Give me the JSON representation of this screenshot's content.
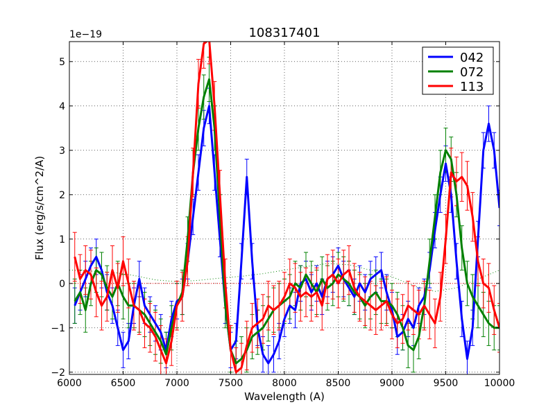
{
  "chart_data": {
    "type": "line",
    "title": "108317401",
    "xlabel": "Wavelength (A)",
    "ylabel": "Flux (erg/s/cm^2/A)",
    "offset_text": "1e−19",
    "xlim": [
      6000,
      10000
    ],
    "ylim": [
      -2.05,
      5.45
    ],
    "xticks": [
      6000,
      6500,
      7000,
      7500,
      8000,
      8500,
      9000,
      9500,
      10000
    ],
    "xtick_labels": [
      "6000",
      "6500",
      "7000",
      "7500",
      "8000",
      "8500",
      "9000",
      "9500",
      "10000"
    ],
    "yticks": [
      -2,
      -1,
      0,
      1,
      2,
      3,
      4,
      5
    ],
    "ytick_labels": [
      "−2",
      "−1",
      "0",
      "1",
      "2",
      "3",
      "4",
      "5"
    ],
    "grid": true,
    "legend_position": "top-right",
    "reference_lines": [
      {
        "name": "zero-line",
        "y": 0,
        "color": "#ff0000",
        "style": "dotted"
      }
    ],
    "noise_curve": {
      "name": "noise-level",
      "color": "#008000",
      "style": "dotted",
      "x": [
        6000,
        6200,
        6400,
        6600,
        6800,
        7000,
        7200,
        7400,
        7600,
        7800,
        8000,
        8200,
        8400,
        8600,
        8800,
        9000,
        9200,
        9400,
        9600,
        9800,
        10000
      ],
      "y": [
        0.3,
        0.28,
        0.25,
        0.18,
        0.08,
        0.04,
        0.07,
        0.12,
        0.16,
        0.22,
        0.3,
        0.38,
        0.45,
        0.42,
        0.3,
        0.15,
        -0.05,
        -0.18,
        -0.1,
        0.1,
        0.3
      ]
    },
    "series": [
      {
        "name": "042",
        "color": "#0000ff",
        "x": [
          6050,
          6100,
          6150,
          6200,
          6250,
          6300,
          6350,
          6400,
          6450,
          6500,
          6550,
          6600,
          6650,
          6700,
          6750,
          6800,
          6850,
          6900,
          6950,
          7000,
          7050,
          7100,
          7150,
          7200,
          7250,
          7300,
          7350,
          7400,
          7450,
          7500,
          7550,
          7600,
          7650,
          7700,
          7750,
          7800,
          7850,
          7900,
          7950,
          8000,
          8050,
          8100,
          8150,
          8200,
          8250,
          8300,
          8350,
          8400,
          8450,
          8500,
          8550,
          8600,
          8650,
          8700,
          8750,
          8800,
          8850,
          8900,
          8950,
          9000,
          9050,
          9100,
          9150,
          9200,
          9250,
          9300,
          9350,
          9400,
          9450,
          9500,
          9550,
          9600,
          9650,
          9700,
          9750,
          9800,
          9850,
          9900,
          9950,
          10000
        ],
        "y": [
          -0.5,
          -0.2,
          0.1,
          0.4,
          0.6,
          0.3,
          -0.2,
          -0.5,
          -1.0,
          -1.5,
          -1.3,
          -0.5,
          0.1,
          -0.5,
          -0.7,
          -0.9,
          -1.1,
          -1.5,
          -0.8,
          -0.4,
          -0.3,
          0.5,
          1.5,
          2.5,
          3.5,
          4.0,
          2.5,
          1.0,
          -0.5,
          -1.5,
          -1.3,
          0.5,
          2.4,
          0.5,
          -1.0,
          -1.6,
          -1.8,
          -1.6,
          -1.3,
          -0.8,
          -0.5,
          -0.6,
          0.0,
          0.1,
          -0.2,
          0.0,
          -0.3,
          0.1,
          0.2,
          0.4,
          0.1,
          -0.1,
          -0.3,
          0.0,
          -0.2,
          0.1,
          0.2,
          0.3,
          -0.2,
          -0.6,
          -1.2,
          -1.1,
          -0.8,
          -1.0,
          -0.5,
          -0.3,
          0.3,
          1.2,
          2.0,
          2.7,
          2.0,
          0.5,
          -0.8,
          -1.7,
          -1.0,
          1.0,
          3.0,
          3.6,
          3.0,
          1.7
        ],
        "err": 0.4
      },
      {
        "name": "072",
        "color": "#008000",
        "x": [
          6050,
          6100,
          6150,
          6200,
          6250,
          6300,
          6350,
          6400,
          6450,
          6500,
          6550,
          6600,
          6650,
          6700,
          6750,
          6800,
          6850,
          6900,
          6950,
          7000,
          7050,
          7100,
          7150,
          7200,
          7250,
          7300,
          7350,
          7400,
          7450,
          7500,
          7550,
          7600,
          7650,
          7700,
          7750,
          7800,
          7850,
          7900,
          7950,
          8000,
          8050,
          8100,
          8150,
          8200,
          8250,
          8300,
          8350,
          8400,
          8450,
          8500,
          8550,
          8600,
          8650,
          8700,
          8750,
          8800,
          8850,
          8900,
          8950,
          9000,
          9050,
          9100,
          9150,
          9200,
          9250,
          9300,
          9350,
          9400,
          9450,
          9500,
          9550,
          9600,
          9650,
          9700,
          9750,
          9800,
          9850,
          9900,
          9950,
          10000
        ],
        "y": [
          -0.4,
          -0.2,
          -0.6,
          0.0,
          0.3,
          0.2,
          -0.1,
          -0.3,
          0.0,
          -0.3,
          -0.5,
          -0.5,
          -0.6,
          -0.7,
          -0.9,
          -1.1,
          -1.3,
          -1.6,
          -1.0,
          -0.5,
          -0.2,
          1.0,
          2.5,
          3.5,
          4.2,
          4.6,
          3.5,
          1.5,
          -0.5,
          -1.5,
          -1.8,
          -1.7,
          -1.5,
          -1.2,
          -1.1,
          -1.0,
          -0.8,
          -0.6,
          -0.5,
          -0.4,
          -0.3,
          0.0,
          -0.1,
          0.2,
          0.0,
          -0.2,
          0.1,
          -0.1,
          0.0,
          0.2,
          0.1,
          0.0,
          -0.2,
          -0.3,
          -0.5,
          -0.3,
          -0.2,
          -0.4,
          -0.4,
          -0.5,
          -0.7,
          -1.0,
          -1.4,
          -1.5,
          -1.2,
          -0.5,
          0.5,
          1.5,
          2.5,
          3.0,
          2.8,
          2.0,
          0.8,
          0.0,
          -0.3,
          -0.5,
          -0.7,
          -0.9,
          -1.0,
          -1.0
        ],
        "err": 0.5
      },
      {
        "name": "113",
        "color": "#ff0000",
        "x": [
          6050,
          6100,
          6150,
          6200,
          6250,
          6300,
          6350,
          6400,
          6450,
          6500,
          6550,
          6600,
          6650,
          6700,
          6750,
          6800,
          6850,
          6900,
          6950,
          7000,
          7050,
          7100,
          7150,
          7200,
          7250,
          7300,
          7350,
          7400,
          7450,
          7500,
          7550,
          7600,
          7650,
          7700,
          7750,
          7800,
          7850,
          7900,
          7950,
          8000,
          8050,
          8100,
          8150,
          8200,
          8250,
          8300,
          8350,
          8400,
          8450,
          8500,
          8550,
          8600,
          8650,
          8700,
          8750,
          8800,
          8850,
          8900,
          8950,
          9000,
          9050,
          9100,
          9150,
          9200,
          9250,
          9300,
          9350,
          9400,
          9450,
          9500,
          9550,
          9600,
          9650,
          9700,
          9750,
          9800,
          9850,
          9900,
          9950,
          10000
        ],
        "y": [
          0.6,
          0.1,
          0.3,
          0.2,
          -0.2,
          -0.5,
          -0.3,
          0.3,
          -0.1,
          0.5,
          0.0,
          -0.5,
          -0.6,
          -0.9,
          -1.0,
          -1.2,
          -1.5,
          -1.8,
          -1.3,
          -0.5,
          -0.3,
          0.5,
          2.5,
          4.5,
          5.4,
          5.5,
          4.0,
          2.0,
          0.0,
          -1.5,
          -2.0,
          -1.9,
          -1.4,
          -1.0,
          -0.9,
          -0.8,
          -0.5,
          -0.6,
          -0.5,
          -0.3,
          0.0,
          -0.1,
          -0.3,
          -0.2,
          -0.3,
          -0.2,
          -0.5,
          0.1,
          0.2,
          0.0,
          0.2,
          0.3,
          -0.1,
          -0.3,
          -0.4,
          -0.5,
          -0.6,
          -0.5,
          -0.4,
          -0.7,
          -0.9,
          -0.8,
          -0.5,
          -0.6,
          -0.7,
          -0.5,
          -0.7,
          -0.9,
          -0.3,
          1.0,
          2.5,
          2.3,
          2.4,
          2.2,
          1.5,
          0.5,
          0.0,
          -0.1,
          -0.6,
          -1.0
        ],
        "err": 0.55
      }
    ]
  }
}
